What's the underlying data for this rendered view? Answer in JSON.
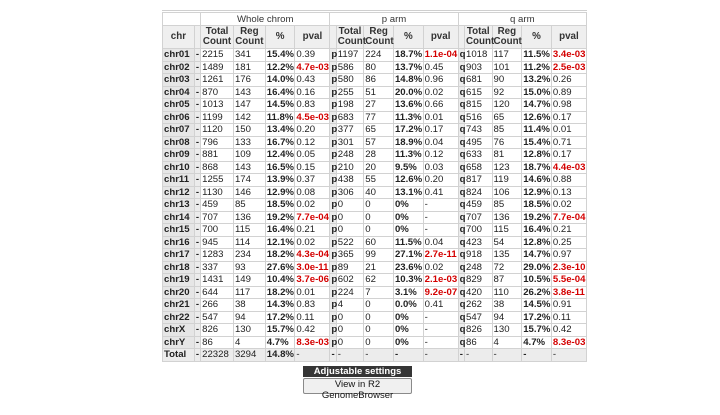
{
  "headers": {
    "chr": "chr",
    "whole": "Whole chrom",
    "parm": "p arm",
    "qarm": "q arm",
    "total": "Total Count",
    "reg": "Reg Count",
    "pct": "%",
    "pval": "pval"
  },
  "rows": [
    {
      "chr": "chr01",
      "w": [
        "-",
        "2215",
        "341",
        "15.4%",
        "0.39"
      ],
      "p": [
        "p",
        "1197",
        "224",
        "18.7%",
        "1.1e-04"
      ],
      "q": [
        "q",
        "1018",
        "117",
        "11.5%",
        "3.4e-03"
      ],
      "sig": [
        false,
        true,
        true
      ]
    },
    {
      "chr": "chr02",
      "w": [
        "-",
        "1489",
        "181",
        "12.2%",
        "4.7e-03"
      ],
      "p": [
        "p",
        "586",
        "80",
        "13.7%",
        "0.45"
      ],
      "q": [
        "q",
        "903",
        "101",
        "11.2%",
        "2.5e-03"
      ],
      "sig": [
        true,
        false,
        true
      ]
    },
    {
      "chr": "chr03",
      "w": [
        "-",
        "1261",
        "176",
        "14.0%",
        "0.43"
      ],
      "p": [
        "p",
        "580",
        "86",
        "14.8%",
        "0.96"
      ],
      "q": [
        "q",
        "681",
        "90",
        "13.2%",
        "0.26"
      ],
      "sig": [
        false,
        false,
        false
      ]
    },
    {
      "chr": "chr04",
      "w": [
        "-",
        "870",
        "143",
        "16.4%",
        "0.16"
      ],
      "p": [
        "p",
        "255",
        "51",
        "20.0%",
        "0.02"
      ],
      "q": [
        "q",
        "615",
        "92",
        "15.0%",
        "0.89"
      ],
      "sig": [
        false,
        false,
        false
      ]
    },
    {
      "chr": "chr05",
      "w": [
        "-",
        "1013",
        "147",
        "14.5%",
        "0.83"
      ],
      "p": [
        "p",
        "198",
        "27",
        "13.6%",
        "0.66"
      ],
      "q": [
        "q",
        "815",
        "120",
        "14.7%",
        "0.98"
      ],
      "sig": [
        false,
        false,
        false
      ]
    },
    {
      "chr": "chr06",
      "w": [
        "-",
        "1199",
        "142",
        "11.8%",
        "4.5e-03"
      ],
      "p": [
        "p",
        "683",
        "77",
        "11.3%",
        "0.01"
      ],
      "q": [
        "q",
        "516",
        "65",
        "12.6%",
        "0.17"
      ],
      "sig": [
        true,
        false,
        false
      ]
    },
    {
      "chr": "chr07",
      "w": [
        "-",
        "1120",
        "150",
        "13.4%",
        "0.20"
      ],
      "p": [
        "p",
        "377",
        "65",
        "17.2%",
        "0.17"
      ],
      "q": [
        "q",
        "743",
        "85",
        "11.4%",
        "0.01"
      ],
      "sig": [
        false,
        false,
        false
      ]
    },
    {
      "chr": "chr08",
      "w": [
        "-",
        "796",
        "133",
        "16.7%",
        "0.12"
      ],
      "p": [
        "p",
        "301",
        "57",
        "18.9%",
        "0.04"
      ],
      "q": [
        "q",
        "495",
        "76",
        "15.4%",
        "0.71"
      ],
      "sig": [
        false,
        false,
        false
      ]
    },
    {
      "chr": "chr09",
      "w": [
        "-",
        "881",
        "109",
        "12.4%",
        "0.05"
      ],
      "p": [
        "p",
        "248",
        "28",
        "11.3%",
        "0.12"
      ],
      "q": [
        "q",
        "633",
        "81",
        "12.8%",
        "0.17"
      ],
      "sig": [
        false,
        false,
        false
      ]
    },
    {
      "chr": "chr10",
      "w": [
        "-",
        "868",
        "143",
        "16.5%",
        "0.15"
      ],
      "p": [
        "p",
        "210",
        "20",
        "9.5%",
        "0.03"
      ],
      "q": [
        "q",
        "658",
        "123",
        "18.7%",
        "4.4e-03"
      ],
      "sig": [
        false,
        false,
        true
      ]
    },
    {
      "chr": "chr11",
      "w": [
        "-",
        "1255",
        "174",
        "13.9%",
        "0.37"
      ],
      "p": [
        "p",
        "438",
        "55",
        "12.6%",
        "0.20"
      ],
      "q": [
        "q",
        "817",
        "119",
        "14.6%",
        "0.88"
      ],
      "sig": [
        false,
        false,
        false
      ]
    },
    {
      "chr": "chr12",
      "w": [
        "-",
        "1130",
        "146",
        "12.9%",
        "0.08"
      ],
      "p": [
        "p",
        "306",
        "40",
        "13.1%",
        "0.41"
      ],
      "q": [
        "q",
        "824",
        "106",
        "12.9%",
        "0.13"
      ],
      "sig": [
        false,
        false,
        false
      ]
    },
    {
      "chr": "chr13",
      "w": [
        "-",
        "459",
        "85",
        "18.5%",
        "0.02"
      ],
      "p": [
        "p",
        "0",
        "0",
        "0%",
        "-"
      ],
      "q": [
        "q",
        "459",
        "85",
        "18.5%",
        "0.02"
      ],
      "sig": [
        false,
        false,
        false
      ]
    },
    {
      "chr": "chr14",
      "w": [
        "-",
        "707",
        "136",
        "19.2%",
        "7.7e-04"
      ],
      "p": [
        "p",
        "0",
        "0",
        "0%",
        "-"
      ],
      "q": [
        "q",
        "707",
        "136",
        "19.2%",
        "7.7e-04"
      ],
      "sig": [
        true,
        false,
        true
      ]
    },
    {
      "chr": "chr15",
      "w": [
        "-",
        "700",
        "115",
        "16.4%",
        "0.21"
      ],
      "p": [
        "p",
        "0",
        "0",
        "0%",
        "-"
      ],
      "q": [
        "q",
        "700",
        "115",
        "16.4%",
        "0.21"
      ],
      "sig": [
        false,
        false,
        false
      ]
    },
    {
      "chr": "chr16",
      "w": [
        "-",
        "945",
        "114",
        "12.1%",
        "0.02"
      ],
      "p": [
        "p",
        "522",
        "60",
        "11.5%",
        "0.04"
      ],
      "q": [
        "q",
        "423",
        "54",
        "12.8%",
        "0.25"
      ],
      "sig": [
        false,
        false,
        false
      ]
    },
    {
      "chr": "chr17",
      "w": [
        "-",
        "1283",
        "234",
        "18.2%",
        "4.3e-04"
      ],
      "p": [
        "p",
        "365",
        "99",
        "27.1%",
        "2.7e-11"
      ],
      "q": [
        "q",
        "918",
        "135",
        "14.7%",
        "0.97"
      ],
      "sig": [
        true,
        true,
        false
      ]
    },
    {
      "chr": "chr18",
      "w": [
        "-",
        "337",
        "93",
        "27.6%",
        "3.0e-11"
      ],
      "p": [
        "p",
        "89",
        "21",
        "23.6%",
        "0.02"
      ],
      "q": [
        "q",
        "248",
        "72",
        "29.0%",
        "2.3e-10"
      ],
      "sig": [
        true,
        false,
        true
      ]
    },
    {
      "chr": "chr19",
      "w": [
        "-",
        "1431",
        "149",
        "10.4%",
        "3.7e-06"
      ],
      "p": [
        "p",
        "602",
        "62",
        "10.3%",
        "2.1e-03"
      ],
      "q": [
        "q",
        "829",
        "87",
        "10.5%",
        "5.5e-04"
      ],
      "sig": [
        true,
        true,
        true
      ]
    },
    {
      "chr": "chr20",
      "w": [
        "-",
        "644",
        "117",
        "18.2%",
        "0.01"
      ],
      "p": [
        "p",
        "224",
        "7",
        "3.1%",
        "9.2e-07"
      ],
      "q": [
        "q",
        "420",
        "110",
        "26.2%",
        "3.8e-11"
      ],
      "sig": [
        false,
        true,
        true
      ]
    },
    {
      "chr": "chr21",
      "w": [
        "-",
        "266",
        "38",
        "14.3%",
        "0.83"
      ],
      "p": [
        "p",
        "4",
        "0",
        "0.0%",
        "0.41"
      ],
      "q": [
        "q",
        "262",
        "38",
        "14.5%",
        "0.91"
      ],
      "sig": [
        false,
        false,
        false
      ]
    },
    {
      "chr": "chr22",
      "w": [
        "-",
        "547",
        "94",
        "17.2%",
        "0.11"
      ],
      "p": [
        "p",
        "0",
        "0",
        "0%",
        "-"
      ],
      "q": [
        "q",
        "547",
        "94",
        "17.2%",
        "0.11"
      ],
      "sig": [
        false,
        false,
        false
      ]
    },
    {
      "chr": "chrX",
      "w": [
        "-",
        "826",
        "130",
        "15.7%",
        "0.42"
      ],
      "p": [
        "p",
        "0",
        "0",
        "0%",
        "-"
      ],
      "q": [
        "q",
        "826",
        "130",
        "15.7%",
        "0.42"
      ],
      "sig": [
        false,
        false,
        false
      ]
    },
    {
      "chr": "chrY",
      "w": [
        "-",
        "86",
        "4",
        "4.7%",
        "8.3e-03"
      ],
      "p": [
        "p",
        "0",
        "0",
        "0%",
        "-"
      ],
      "q": [
        "q",
        "86",
        "4",
        "4.7%",
        "8.3e-03"
      ],
      "sig": [
        true,
        false,
        true
      ]
    }
  ],
  "total": {
    "chr": "Total",
    "w": [
      "-",
      "22328",
      "3294",
      "14.8%",
      "-"
    ],
    "p": [
      "-",
      "-",
      "-",
      "-",
      "-"
    ],
    "q": [
      "-",
      "-",
      "-",
      "-",
      "-"
    ]
  },
  "settings_label": "Adjustable settings",
  "genome_button": "View in R2 GenomeBrowser",
  "colors": {
    "significant": "#d40000",
    "header_bg": "#ececec",
    "settings_bg": "#353535"
  }
}
